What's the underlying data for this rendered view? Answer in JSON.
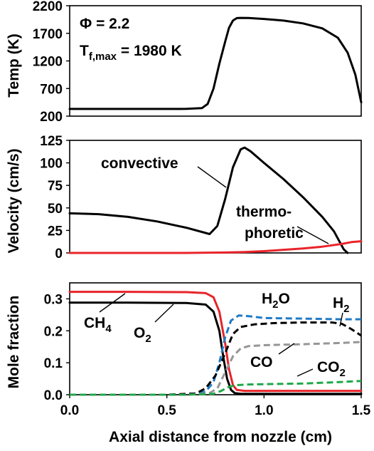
{
  "chart_data": [
    {
      "type": "line",
      "ylabel": "Temp (K)",
      "xlim": [
        0,
        1.5
      ],
      "ylim": [
        200,
        2200
      ],
      "yticks": [
        200,
        700,
        1200,
        1700,
        2200
      ],
      "annotations": {
        "phi": "Φ = 2.2",
        "tf_main": "T",
        "tf_sub": "f,max",
        "tf_rest": " = 1980 K"
      },
      "series": [
        {
          "color": "#000000",
          "dash": "solid",
          "x": [
            0,
            0.2,
            0.4,
            0.6,
            0.68,
            0.71,
            0.74,
            0.77,
            0.8,
            0.82,
            0.84,
            0.86,
            0.88,
            0.92,
            1.0,
            1.1,
            1.2,
            1.3,
            1.38,
            1.43,
            1.47,
            1.5
          ],
          "y": [
            330,
            330,
            330,
            332,
            345,
            420,
            700,
            1150,
            1550,
            1800,
            1930,
            1975,
            1980,
            1978,
            1960,
            1930,
            1880,
            1790,
            1620,
            1350,
            950,
            450
          ]
        }
      ]
    },
    {
      "type": "line",
      "ylabel": "Velocity (cm/s)",
      "xlim": [
        0,
        1.5
      ],
      "ylim": [
        0,
        125
      ],
      "yticks": [
        0,
        25,
        50,
        75,
        100,
        125
      ],
      "annotations": {
        "convective": "convective",
        "thermo_1": "thermo-",
        "thermo_2": "phoretic"
      },
      "series": [
        {
          "color": "#000000",
          "dash": "solid",
          "x": [
            0,
            0.15,
            0.3,
            0.45,
            0.6,
            0.72,
            0.76,
            0.8,
            0.84,
            0.88,
            0.9,
            0.93,
            1.0,
            1.1,
            1.2,
            1.3,
            1.36,
            1.39,
            1.41,
            1.43
          ],
          "y": [
            44,
            43,
            40,
            35,
            28,
            21,
            30,
            60,
            95,
            115,
            117,
            113,
            100,
            82,
            62,
            40,
            24,
            12,
            4,
            0
          ]
        },
        {
          "color": "#e8242a",
          "dash": "solid",
          "x": [
            0,
            0.3,
            0.6,
            0.8,
            0.9,
            1.0,
            1.1,
            1.2,
            1.3,
            1.4,
            1.45,
            1.5
          ],
          "y": [
            0,
            0,
            0,
            0.5,
            1,
            2,
            3.5,
            5,
            7,
            10,
            12,
            13
          ]
        }
      ]
    },
    {
      "type": "line",
      "ylabel": "Mole fraction",
      "xlabel": "Axial distance from nozzle (cm)",
      "xlim": [
        0,
        1.5
      ],
      "ylim": [
        0,
        0.35
      ],
      "xticks": [
        "0.0",
        "0.5",
        "1.0",
        "1.5"
      ],
      "yticks": [
        "0.0",
        "0.1",
        "0.2",
        "0.3"
      ],
      "labels": {
        "ch4_main": "CH",
        "ch4_sub": "4",
        "o2_main": "O",
        "o2_sub": "2",
        "h2o_main": "H",
        "h2o_sub": "2",
        "h2o_end": "O",
        "h2_main": "H",
        "h2_sub": "2",
        "co": "CO",
        "co2_main": "CO",
        "co2_sub": "2"
      },
      "series": [
        {
          "species": "O2",
          "color": "#e8242a",
          "dash": "solid",
          "x": [
            0,
            0.3,
            0.6,
            0.7,
            0.74,
            0.77,
            0.8,
            0.82,
            0.84,
            0.86,
            0.9,
            1.0,
            1.2,
            1.5
          ],
          "y": [
            0.322,
            0.322,
            0.321,
            0.318,
            0.305,
            0.26,
            0.16,
            0.08,
            0.03,
            0.015,
            0.012,
            0.012,
            0.012,
            0.012
          ]
        },
        {
          "species": "CH4",
          "color": "#000000",
          "dash": "solid",
          "x": [
            0,
            0.3,
            0.6,
            0.7,
            0.74,
            0.77,
            0.79,
            0.81,
            0.83,
            0.85,
            0.88,
            0.95,
            1.2,
            1.5
          ],
          "y": [
            0.288,
            0.288,
            0.287,
            0.282,
            0.26,
            0.2,
            0.12,
            0.05,
            0.015,
            0.005,
            0.003,
            0.003,
            0.003,
            0.003
          ]
        },
        {
          "species": "H2O",
          "color": "#1f7ac4",
          "dash": "dashed",
          "x": [
            0,
            0.5,
            0.65,
            0.7,
            0.74,
            0.77,
            0.8,
            0.83,
            0.87,
            0.92,
            1.0,
            1.2,
            1.4,
            1.5
          ],
          "y": [
            0,
            0,
            0.002,
            0.01,
            0.04,
            0.1,
            0.18,
            0.232,
            0.248,
            0.246,
            0.24,
            0.238,
            0.236,
            0.236
          ]
        },
        {
          "species": "H2",
          "color": "#000000",
          "dash": "dashed",
          "x": [
            0,
            0.5,
            0.65,
            0.7,
            0.75,
            0.8,
            0.84,
            0.88,
            0.95,
            1.05,
            1.2,
            1.35,
            1.4,
            1.45,
            1.5
          ],
          "y": [
            0,
            0,
            0.004,
            0.02,
            0.06,
            0.13,
            0.19,
            0.212,
            0.22,
            0.224,
            0.226,
            0.226,
            0.222,
            0.205,
            0.185
          ]
        },
        {
          "species": "CO",
          "color": "#969696",
          "dash": "dashed",
          "x": [
            0,
            0.6,
            0.72,
            0.76,
            0.8,
            0.84,
            0.88,
            0.92,
            1.0,
            1.2,
            1.4,
            1.5
          ],
          "y": [
            0,
            0,
            0.005,
            0.02,
            0.07,
            0.12,
            0.145,
            0.152,
            0.155,
            0.158,
            0.162,
            0.165
          ]
        },
        {
          "species": "CO2",
          "color": "#1fa84a",
          "dash": "dashed",
          "x": [
            0,
            0.6,
            0.74,
            0.78,
            0.82,
            0.86,
            0.92,
            1.0,
            1.2,
            1.4,
            1.5
          ],
          "y": [
            0,
            0,
            0.003,
            0.012,
            0.025,
            0.03,
            0.032,
            0.033,
            0.035,
            0.04,
            0.043
          ]
        }
      ]
    }
  ]
}
